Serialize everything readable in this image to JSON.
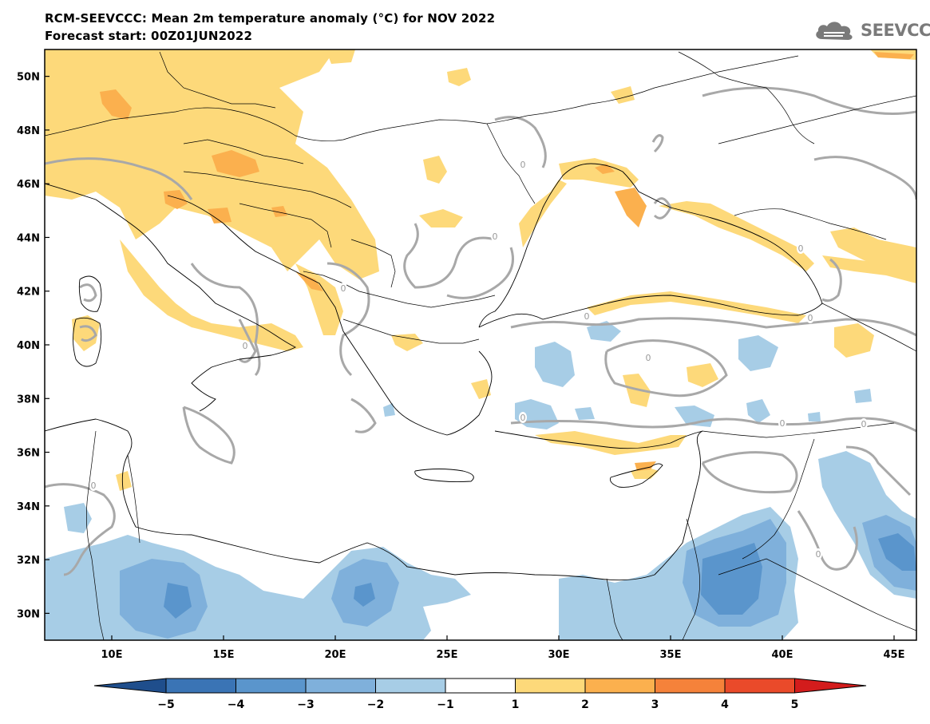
{
  "title": {
    "line1": "RCM-SEEVCCC: Mean 2m temperature anomaly (°C) for NOV 2022",
    "line2": "Forecast start: 00Z01JUN2022"
  },
  "logo": {
    "text": "SEEVCCC",
    "icon": "cloud-icon"
  },
  "map": {
    "lon_range": [
      7,
      46
    ],
    "lat_range": [
      29,
      51
    ],
    "lon_ticks": [
      {
        "value": 10,
        "label": "10E"
      },
      {
        "value": 15,
        "label": "15E"
      },
      {
        "value": 20,
        "label": "20E"
      },
      {
        "value": 25,
        "label": "25E"
      },
      {
        "value": 30,
        "label": "30E"
      },
      {
        "value": 35,
        "label": "35E"
      },
      {
        "value": 40,
        "label": "40E"
      },
      {
        "value": 45,
        "label": "45E"
      }
    ],
    "lat_ticks": [
      {
        "value": 50,
        "label": "50N"
      },
      {
        "value": 48,
        "label": "48N"
      },
      {
        "value": 46,
        "label": "46N"
      },
      {
        "value": 44,
        "label": "44N"
      },
      {
        "value": 42,
        "label": "42N"
      },
      {
        "value": 40,
        "label": "40N"
      },
      {
        "value": 38,
        "label": "38N"
      },
      {
        "value": 36,
        "label": "36N"
      },
      {
        "value": 34,
        "label": "34N"
      },
      {
        "value": 32,
        "label": "32N"
      },
      {
        "value": 30,
        "label": "30N"
      }
    ],
    "contour_label": "0",
    "colorbar": {
      "levels": [
        "−5",
        "−4",
        "−3",
        "−2",
        "−1",
        "1",
        "2",
        "3",
        "4",
        "5"
      ],
      "colors": [
        "#1f4e8c",
        "#3a74b5",
        "#5a95cc",
        "#7fb0db",
        "#a7cde6",
        "#ffffff",
        "#fdd97a",
        "#fbb04e",
        "#f5823a",
        "#ea4a2a",
        "#d31c1c"
      ]
    }
  }
}
